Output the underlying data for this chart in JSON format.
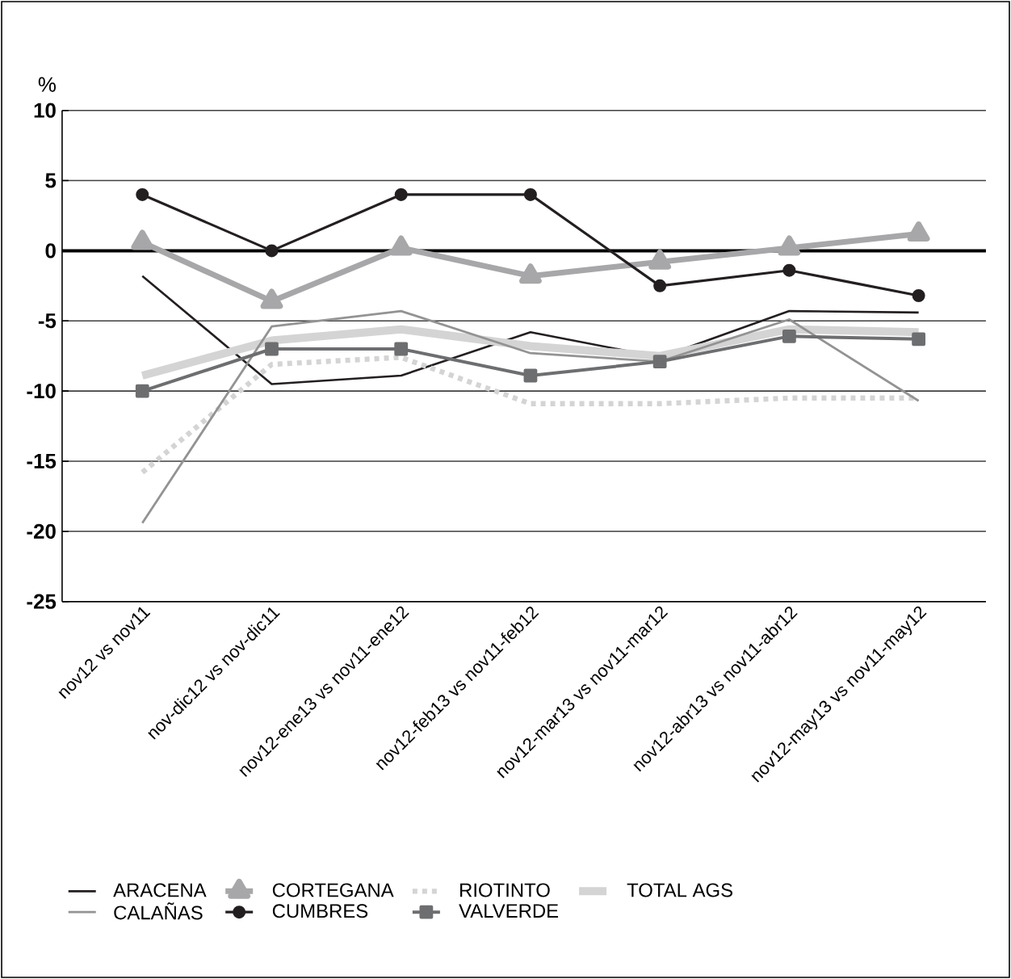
{
  "chart_data": {
    "type": "line",
    "ylabel": "%",
    "categories": [
      "nov12 vs nov11",
      "nov-dic12 vs nov-dic11",
      "nov12-ene13 vs nov11-ene12",
      "nov12-feb13 vs nov11-feb12",
      "nov12-mar13 vs nov11-mar12",
      "nov12-abr13 vs nov11-abr12",
      "nov12-may13 vs nov11-may12"
    ],
    "series": [
      {
        "name": "ARACENA",
        "color": "#231f20",
        "marker": "none",
        "line_style": "solid",
        "values": [
          -1.8,
          -9.5,
          -8.9,
          -5.8,
          -7.6,
          -4.3,
          -4.4
        ]
      },
      {
        "name": "CORTEGANA",
        "color": "#a7a7a9",
        "marker": "triangle",
        "line_style": "solid",
        "values": [
          0.6,
          -3.6,
          0.2,
          -1.8,
          -0.8,
          0.2,
          1.2
        ]
      },
      {
        "name": "RIOTINTO",
        "color": "#d4d4d4",
        "marker": "none",
        "line_style": "dotted",
        "values": [
          -15.8,
          -8.1,
          -7.6,
          -10.9,
          -10.9,
          -10.5,
          -10.5
        ]
      },
      {
        "name": "TOTAL AGS",
        "color": "#d4d4d4",
        "marker": "none",
        "line_style": "solid",
        "values": [
          -8.9,
          -6.4,
          -5.6,
          -6.8,
          -7.5,
          -5.6,
          -5.8
        ]
      },
      {
        "name": "CALAÑAS",
        "color": "#939393",
        "marker": "none",
        "line_style": "solid",
        "values": [
          -19.4,
          -5.4,
          -4.3,
          -7.3,
          -7.9,
          -4.9,
          -10.7
        ]
      },
      {
        "name": "CUMBRES",
        "color": "#231f20",
        "marker": "circle",
        "line_style": "solid",
        "values": [
          4.0,
          0.0,
          4.0,
          4.0,
          -2.5,
          -1.4,
          -3.2
        ]
      },
      {
        "name": "VALVERDE",
        "color": "#6d6e70",
        "marker": "square",
        "line_style": "solid",
        "values": [
          -10.0,
          -7.0,
          -7.0,
          -8.9,
          -7.9,
          -6.1,
          -6.3
        ]
      }
    ],
    "ylim": [
      -25,
      10
    ],
    "yticks": [
      -25,
      -20,
      -15,
      -10,
      -5,
      0,
      5,
      10
    ],
    "grid": "y",
    "ref_lines": [
      {
        "axis": "y",
        "value": 0,
        "color": "#000000"
      }
    ],
    "legend": "bottom"
  }
}
